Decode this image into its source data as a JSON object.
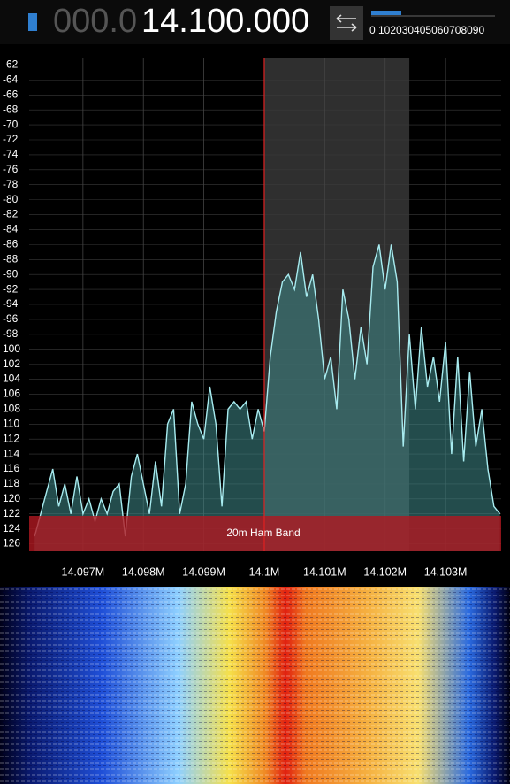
{
  "header": {
    "frequency_dim": "000.0",
    "frequency": "14.100.000",
    "scale": "0 102030405060708090"
  },
  "chart_data": {
    "type": "line",
    "color": "#a8ecf0",
    "x": [
      14.0962,
      14.0964,
      14.0965,
      14.0966,
      14.0967,
      14.0968,
      14.0969,
      14.097,
      14.0971,
      14.0972,
      14.0973,
      14.0974,
      14.0975,
      14.0976,
      14.0977,
      14.0978,
      14.0979,
      14.098,
      14.0981,
      14.0982,
      14.0983,
      14.0984,
      14.0985,
      14.0986,
      14.0987,
      14.0988,
      14.0989,
      14.099,
      14.0991,
      14.0992,
      14.0993,
      14.0994,
      14.0995,
      14.0996,
      14.0997,
      14.0998,
      14.0999,
      14.1,
      14.1001,
      14.1002,
      14.1003,
      14.1004,
      14.1005,
      14.1006,
      14.1007,
      14.1008,
      14.1009,
      14.101,
      14.1011,
      14.1012,
      14.1013,
      14.1014,
      14.1015,
      14.1016,
      14.1017,
      14.1018,
      14.1019,
      14.102,
      14.1021,
      14.1022,
      14.1023,
      14.1024,
      14.1025,
      14.1026,
      14.1027,
      14.1028,
      14.1029,
      14.103,
      14.1031,
      14.1032,
      14.1033,
      14.1034,
      14.1035,
      14.1036,
      14.1037,
      14.1038,
      14.1039
    ],
    "values": [
      -125,
      -119,
      -116,
      -121,
      -118,
      -122,
      -117,
      -122,
      -120,
      -123,
      -120,
      -122,
      -119,
      -118,
      -125,
      -117,
      -114,
      -118,
      -122,
      -115,
      -121,
      -110,
      -108,
      -122,
      -118,
      -107,
      -110,
      -112,
      -105,
      -110,
      -121,
      -108,
      -107,
      -108,
      -107,
      -112,
      -108,
      -111,
      -101,
      -95,
      -91,
      -90,
      -92,
      -87,
      -93,
      -90,
      -96,
      -104,
      -101,
      -108,
      -92,
      -96,
      -104,
      -97,
      -102,
      -89,
      -86,
      -92,
      -86,
      -91,
      -113,
      -98,
      -108,
      -97,
      -105,
      -101,
      -107,
      -99,
      -114,
      -101,
      -115,
      -103,
      -113,
      -108,
      -116,
      -121,
      -122
    ],
    "xlim": [
      14.09611,
      14.10392
    ],
    "ylim": [
      -127,
      -61
    ],
    "xticks": [
      {
        "value": 14.097,
        "label": "14.097M"
      },
      {
        "value": 14.098,
        "label": "14.098M"
      },
      {
        "value": 14.099,
        "label": "14.099M"
      },
      {
        "value": 14.1,
        "label": "14.1M"
      },
      {
        "value": 14.101,
        "label": "14.101M"
      },
      {
        "value": 14.102,
        "label": "14.102M"
      },
      {
        "value": 14.103,
        "label": "14.103M"
      }
    ],
    "yticks": [
      -62,
      -64,
      -66,
      -68,
      -70,
      -72,
      -74,
      -76,
      -78,
      -80,
      -82,
      -84,
      -86,
      -88,
      -90,
      -92,
      -94,
      -96,
      -98,
      {
        "value": -100,
        "label": "100"
      },
      {
        "value": -102,
        "label": "102"
      },
      {
        "value": -104,
        "label": "104"
      },
      {
        "value": -106,
        "label": "106"
      },
      {
        "value": -108,
        "label": "108"
      },
      {
        "value": -110,
        "label": "110"
      },
      {
        "value": -112,
        "label": "112"
      },
      {
        "value": -114,
        "label": "114"
      },
      {
        "value": -116,
        "label": "116"
      },
      {
        "value": -118,
        "label": "118"
      },
      {
        "value": -120,
        "label": "120"
      },
      {
        "value": -122,
        "label": "122"
      },
      {
        "value": -124,
        "label": "124"
      },
      {
        "value": -126,
        "label": "126"
      }
    ],
    "grid": true,
    "tuned": 14.1,
    "passband": [
      14.1,
      14.1024
    ],
    "band_label": "20m Ham Band"
  }
}
